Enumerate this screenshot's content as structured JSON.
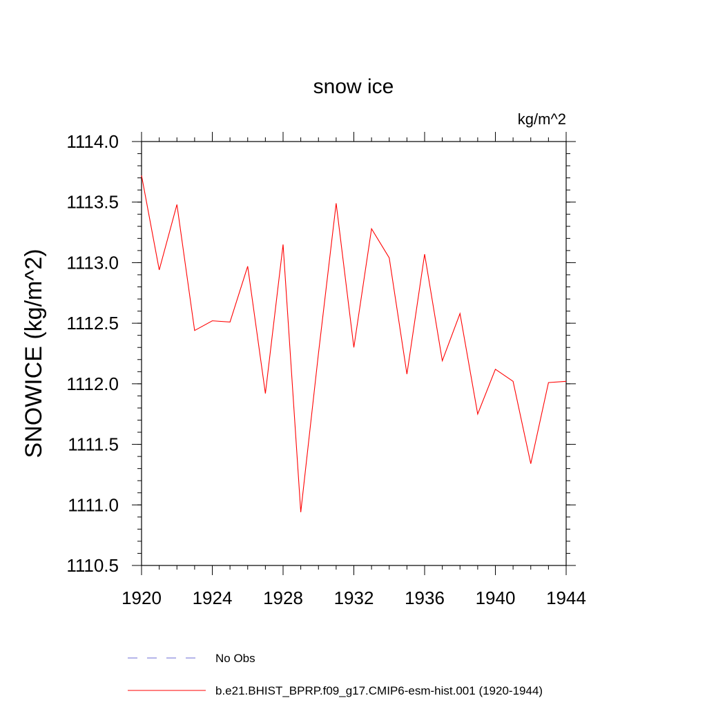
{
  "chart_data": {
    "type": "line",
    "title": "snow ice",
    "units": "kg/m^2",
    "ylabel": "SNOWICE  (kg/m^2)",
    "xlabel": "",
    "xlim": [
      1920,
      1944
    ],
    "ylim": [
      1110.5,
      1114.0
    ],
    "xticks": [
      "1920",
      "1924",
      "1928",
      "1932",
      "1936",
      "1940",
      "1944"
    ],
    "yticks": [
      "1110.5",
      "1111.0",
      "1111.5",
      "1112.0",
      "1112.5",
      "1113.0",
      "1113.5",
      "1114.0"
    ],
    "x": [
      1920,
      1921,
      1922,
      1923,
      1924,
      1925,
      1926,
      1927,
      1928,
      1929,
      1930,
      1931,
      1932,
      1933,
      1934,
      1935,
      1936,
      1937,
      1938,
      1939,
      1940,
      1941,
      1942,
      1943,
      1944
    ],
    "series": [
      {
        "name": "b.e21.BHIST_BPRP.f09_g17.CMIP6-esm-hist.001 (1920-1944)",
        "color": "#ff0000",
        "values": [
          1113.72,
          1112.94,
          1113.48,
          1112.44,
          1112.52,
          1112.51,
          1112.97,
          1111.92,
          1113.15,
          1110.94,
          1112.25,
          1113.49,
          1112.3,
          1113.28,
          1113.04,
          1112.08,
          1113.07,
          1112.19,
          1112.58,
          1111.75,
          1112.12,
          1112.02,
          1111.34,
          1112.01,
          1112.02
        ]
      }
    ],
    "legend": [
      {
        "label": "No Obs",
        "color": "#6b6bd6",
        "style": "dashed"
      },
      {
        "label": "b.e21.BHIST_BPRP.f09_g17.CMIP6-esm-hist.001 (1920-1944)",
        "color": "#ff0000",
        "style": "solid"
      }
    ],
    "grid": false,
    "legend_position": "bottom"
  }
}
